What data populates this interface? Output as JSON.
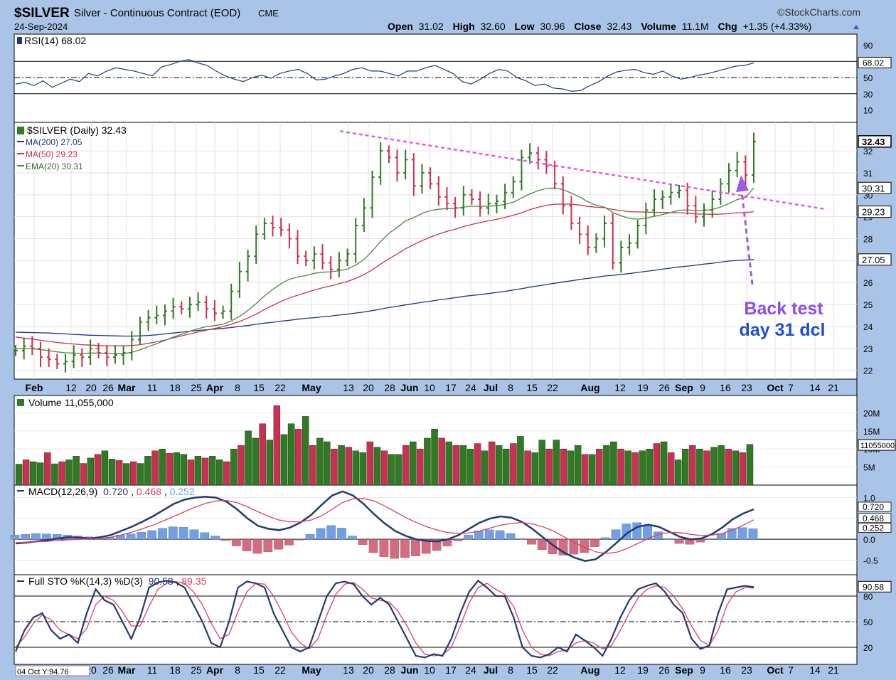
{
  "header": {
    "symbol": "$SILVER",
    "description": "Silver - Continuous Contract (EOD)",
    "exchange": "CME",
    "source": "©StockCharts.com",
    "date": "24-Sep-2024",
    "open_label": "Open",
    "open": "31.02",
    "high_label": "High",
    "high": "32.60",
    "low_label": "Low",
    "low": "30.96",
    "close_label": "Close",
    "close": "32.43",
    "volume_label": "Volume",
    "volume": "11.1M",
    "chg_label": "Chg",
    "chg": "+1.35 (+4.33%)"
  },
  "annotation": {
    "line1": "Back test",
    "line2": "day 31 dcl"
  },
  "cursor_readout": "04 Oct Y:94.76",
  "colors": {
    "background": "#a9c4e6",
    "panel": "#ffffff",
    "up": "#2f7a22",
    "down": "#c8314f",
    "ma200": "#1f2f8f",
    "ma50": "#c8314f",
    "ema20": "#4a8a3e",
    "trendline": "#e05ae8",
    "arrow": "#9b5ce8",
    "annotation_text": "#8a4cf0",
    "macd_line": "#1f3a7a",
    "macd_signal": "#e0405a",
    "histogram": "#6f9fe8",
    "volume_up": "#2f7a22",
    "volume_down": "#c8314f"
  },
  "chart_data": [
    {
      "type": "line",
      "title": "RSI(14) 68.02",
      "series": [
        {
          "name": "RSI(14)",
          "values": [
            42,
            44,
            40,
            46,
            38,
            43,
            48,
            45,
            55,
            52,
            58,
            62,
            60,
            58,
            55,
            52,
            63,
            66,
            70,
            72,
            68,
            65,
            58,
            52,
            48,
            45,
            50,
            53,
            49,
            55,
            58,
            60,
            55,
            47,
            48,
            52,
            55,
            60,
            62,
            58,
            58,
            55,
            52,
            58,
            58,
            62,
            65,
            60,
            55,
            45,
            42,
            48,
            55,
            60,
            58,
            50,
            46,
            40,
            42,
            37,
            36,
            33,
            34,
            40,
            45,
            52,
            57,
            59,
            60,
            56,
            54,
            58,
            52,
            48,
            50,
            53,
            55,
            58,
            61,
            64,
            65,
            68
          ]
        }
      ],
      "ylim": [
        0,
        100
      ],
      "ticks": [
        10,
        30,
        50,
        70,
        90
      ],
      "last_value_label": "68.02"
    },
    {
      "type": "bar",
      "title": "$SILVER (Daily) 32.43",
      "x_labels": [
        "Feb",
        "12",
        "20",
        "26",
        "Mar",
        "11",
        "18",
        "25",
        "Apr",
        "8",
        "15",
        "22",
        "May",
        "13",
        "20",
        "28",
        "Jun",
        "10",
        "17",
        "24",
        "Jul",
        "8",
        "15",
        "22",
        "Aug",
        "12",
        "19",
        "26",
        "Sep",
        "9",
        "16",
        "23",
        "Oct",
        "7",
        "14",
        "21"
      ],
      "ylim": [
        21.6,
        33.3
      ],
      "y_ticks": [
        22,
        23,
        24,
        25,
        26,
        27,
        28,
        29,
        30,
        31,
        32
      ],
      "price_labels": [
        "32.43",
        "30.31",
        "29.23",
        "27.05"
      ],
      "close": [
        22.9,
        23.1,
        23.0,
        22.6,
        22.5,
        22.3,
        22.4,
        22.7,
        22.6,
        23.0,
        22.8,
        22.6,
        22.7,
        22.8,
        23.4,
        24.2,
        24.4,
        24.5,
        24.7,
        24.9,
        24.8,
        25.0,
        25.1,
        24.8,
        24.6,
        24.7,
        25.6,
        26.5,
        27.2,
        28.2,
        28.7,
        28.5,
        28.4,
        28.0,
        27.2,
        27.0,
        27.3,
        26.9,
        26.6,
        27.0,
        27.3,
        28.6,
        29.4,
        30.8,
        32.0,
        31.7,
        31.0,
        31.6,
        30.4,
        31.0,
        30.5,
        29.9,
        29.6,
        29.4,
        30.0,
        29.8,
        29.4,
        29.6,
        29.7,
        30.1,
        30.6,
        31.7,
        31.9,
        31.6,
        31.3,
        30.5,
        29.5,
        28.7,
        28.2,
        27.6,
        28.0,
        28.7,
        26.9,
        27.6,
        27.8,
        28.6,
        29.3,
        29.8,
        29.9,
        30.1,
        30.2,
        29.5,
        29.0,
        29.3,
        29.8,
        30.5,
        31.1,
        31.5,
        30.9,
        32.43
      ],
      "series": [
        {
          "name": "MA(200)",
          "label": "MA(200) 27.05",
          "values": [
            23.74,
            23.73,
            23.72,
            23.71,
            23.7,
            23.68,
            23.66,
            23.64,
            23.62,
            23.6,
            23.59,
            23.58,
            23.57,
            23.56,
            23.56,
            23.57,
            23.59,
            23.62,
            23.66,
            23.7,
            23.74,
            23.78,
            23.82,
            23.85,
            23.88,
            23.91,
            23.95,
            24.0,
            24.04,
            24.1,
            24.15,
            24.19,
            24.24,
            24.28,
            24.33,
            24.37,
            24.4,
            24.44,
            24.47,
            24.52,
            24.56,
            24.61,
            24.66,
            24.72,
            24.79,
            24.86,
            24.92,
            24.98,
            25.04,
            25.1,
            25.15,
            25.21,
            25.26,
            25.31,
            25.37,
            25.41,
            25.45,
            25.5,
            25.55,
            25.6,
            25.66,
            25.72,
            25.79,
            25.85,
            25.91,
            25.97,
            26.03,
            26.08,
            26.14,
            26.19,
            26.24,
            26.3,
            26.33,
            26.37,
            26.41,
            26.46,
            26.51,
            26.56,
            26.61,
            26.66,
            26.71,
            26.75,
            26.79,
            26.84,
            26.88,
            26.93,
            26.98,
            27.01,
            27.03,
            27.05
          ]
        },
        {
          "name": "MA(50)",
          "label": "MA(50) 29.23",
          "values": [
            23.52,
            23.47,
            23.42,
            23.37,
            23.32,
            23.27,
            23.23,
            23.2,
            23.17,
            23.15,
            23.13,
            23.11,
            23.12,
            23.12,
            23.13,
            23.17,
            23.23,
            23.3,
            23.38,
            23.48,
            23.57,
            23.66,
            23.75,
            23.83,
            23.91,
            23.99,
            24.1,
            24.23,
            24.38,
            24.56,
            24.77,
            24.96,
            25.14,
            25.3,
            25.42,
            25.54,
            25.66,
            25.76,
            25.85,
            25.95,
            26.05,
            26.19,
            26.36,
            26.58,
            26.84,
            27.08,
            27.3,
            27.54,
            27.73,
            27.91,
            28.07,
            28.21,
            28.33,
            28.43,
            28.55,
            28.65,
            28.73,
            28.81,
            28.88,
            28.97,
            29.06,
            29.18,
            29.32,
            29.43,
            29.52,
            29.57,
            29.58,
            29.57,
            29.53,
            29.47,
            29.43,
            29.41,
            29.33,
            29.28,
            29.23,
            29.22,
            29.21,
            29.2,
            29.19,
            29.19,
            29.18,
            29.16,
            29.13,
            29.12,
            29.11,
            29.12,
            29.14,
            29.18,
            29.19,
            29.23
          ]
        },
        {
          "name": "EMA(20)",
          "label": "EMA(20) 30.31",
          "values": [
            23.0,
            22.99,
            22.99,
            22.94,
            22.9,
            22.84,
            22.8,
            22.79,
            22.77,
            22.79,
            22.79,
            22.77,
            22.76,
            22.76,
            22.82,
            22.94,
            23.08,
            23.21,
            23.36,
            23.52,
            23.64,
            23.78,
            23.9,
            23.99,
            24.04,
            24.1,
            24.25,
            24.46,
            24.73,
            25.04,
            25.39,
            25.69,
            25.95,
            26.15,
            26.25,
            26.32,
            26.42,
            26.47,
            26.49,
            26.54,
            26.61,
            26.8,
            27.05,
            27.43,
            27.87,
            28.24,
            28.51,
            28.81,
            28.96,
            29.15,
            29.28,
            29.34,
            29.37,
            29.38,
            29.44,
            29.48,
            29.47,
            29.48,
            29.5,
            29.56,
            29.66,
            29.85,
            30.04,
            30.19,
            30.29,
            30.31,
            30.23,
            30.08,
            29.9,
            29.68,
            29.52,
            29.44,
            29.19,
            29.04,
            28.92,
            28.89,
            28.93,
            29.02,
            29.1,
            29.19,
            29.29,
            29.31,
            29.28,
            29.28,
            29.33,
            29.44,
            29.6,
            29.78,
            29.88,
            30.31
          ]
        }
      ]
    },
    {
      "type": "bar",
      "title": "Volume 11,055,000",
      "series": [
        {
          "name": "Volume",
          "values": [
            5.8,
            7,
            6.5,
            6.2,
            9,
            5.9,
            6.5,
            7,
            8,
            6,
            7.5,
            8.5,
            9.5,
            7.2,
            6.8,
            6,
            6.5,
            6,
            8,
            9.5,
            10,
            8.8,
            9,
            8.5,
            7,
            8,
            7.5,
            8,
            7,
            6.5,
            10,
            11,
            15,
            13,
            17,
            12.5,
            22,
            14,
            17,
            15.5,
            19,
            11,
            13,
            12,
            10,
            11,
            10.5,
            9.5,
            9,
            12,
            10.5,
            9.5,
            8.5,
            8.5,
            11,
            12,
            10,
            13,
            15.5,
            13,
            12,
            11,
            11,
            10,
            11.5,
            9.5,
            12,
            11,
            10,
            11.5,
            13.5,
            9.5,
            9,
            12.5,
            10,
            12.5,
            10,
            9.5,
            11,
            8.5,
            8.5,
            10,
            11,
            12,
            10,
            9.5,
            9,
            9.5,
            10,
            11.5,
            12,
            9,
            7,
            10,
            11,
            10,
            9.5,
            10.5,
            11,
            10,
            9.5,
            9,
            11.3
          ]
        }
      ],
      "ticks": [
        "5M",
        "10M",
        "15M",
        "20M"
      ],
      "last_value_label": "11055000"
    },
    {
      "type": "line",
      "title": "MACD(12,26,9)",
      "series": [
        {
          "name": "MACD",
          "label": "0.720",
          "values": [
            -0.1,
            -0.08,
            -0.05,
            -0.02,
            0.02,
            0.05,
            0.04,
            0.02,
            0.05,
            0.1,
            0.2,
            0.3,
            0.42,
            0.55,
            0.7,
            0.85,
            0.95,
            1.0,
            1.02,
            1.0,
            0.9,
            0.72,
            0.5,
            0.32,
            0.25,
            0.22,
            0.28,
            0.4,
            0.58,
            0.82,
            1.05,
            1.15,
            1.05,
            0.85,
            0.6,
            0.38,
            0.2,
            0.08,
            0.0,
            -0.04,
            -0.05,
            0.0,
            0.1,
            0.25,
            0.4,
            0.5,
            0.55,
            0.52,
            0.42,
            0.25,
            0.05,
            -0.15,
            -0.32,
            -0.44,
            -0.52,
            -0.48,
            -0.3,
            -0.08,
            0.15,
            0.3,
            0.35,
            0.3,
            0.18,
            0.06,
            0.0,
            0.02,
            0.12,
            0.28,
            0.48,
            0.62,
            0.72
          ]
        },
        {
          "name": "Signal",
          "label": "0.468",
          "values": [
            -0.08,
            -0.07,
            -0.06,
            -0.05,
            -0.03,
            -0.01,
            0.0,
            0.01,
            0.02,
            0.05,
            0.1,
            0.17,
            0.25,
            0.34,
            0.44,
            0.55,
            0.66,
            0.77,
            0.86,
            0.92,
            0.93,
            0.88,
            0.78,
            0.66,
            0.55,
            0.46,
            0.42,
            0.42,
            0.46,
            0.56,
            0.72,
            0.88,
            0.97,
            0.98,
            0.92,
            0.8,
            0.66,
            0.52,
            0.4,
            0.3,
            0.22,
            0.16,
            0.14,
            0.15,
            0.2,
            0.27,
            0.34,
            0.38,
            0.4,
            0.37,
            0.3,
            0.2,
            0.06,
            -0.08,
            -0.2,
            -0.3,
            -0.34,
            -0.31,
            -0.22,
            -0.1,
            0.02,
            0.12,
            0.16,
            0.16,
            0.12,
            0.09,
            0.1,
            0.14,
            0.22,
            0.34,
            0.468
          ]
        },
        {
          "name": "Histogram",
          "label": "0.252",
          "values": [
            0.1,
            0.12,
            0.14,
            0.13,
            0.12,
            0.1,
            0.08,
            0.06,
            0.03,
            0.05,
            0.1,
            0.13,
            0.17,
            0.21,
            0.26,
            0.3,
            0.29,
            0.23,
            0.16,
            0.08,
            -0.03,
            -0.16,
            -0.28,
            -0.34,
            -0.3,
            -0.24,
            -0.14,
            -0.02,
            0.12,
            0.26,
            0.33,
            0.27,
            0.08,
            -0.13,
            -0.32,
            -0.42,
            -0.46,
            -0.44,
            -0.4,
            -0.34,
            -0.27,
            -0.16,
            -0.04,
            0.1,
            0.2,
            0.23,
            0.21,
            0.14,
            0.02,
            -0.12,
            -0.25,
            -0.35,
            -0.38,
            -0.36,
            -0.32,
            -0.18,
            0.04,
            0.23,
            0.37,
            0.4,
            0.33,
            0.18,
            0.02,
            -0.1,
            -0.12,
            -0.07,
            0.02,
            0.14,
            0.26,
            0.28,
            0.252
          ]
        }
      ],
      "ticks": [
        "-0.5",
        "0.0",
        "0.5",
        "1.0"
      ],
      "ylim": [
        -0.85,
        1.3
      ]
    },
    {
      "type": "line",
      "title": "Full STO %K(14,3) %D(3)",
      "series": [
        {
          "name": "%K(14,3)",
          "label": "90.58",
          "values": [
            15,
            40,
            55,
            60,
            40,
            30,
            35,
            25,
            60,
            88,
            75,
            70,
            50,
            30,
            55,
            90,
            96,
            98,
            96,
            90,
            70,
            50,
            25,
            20,
            50,
            90,
            97,
            95,
            90,
            60,
            40,
            20,
            15,
            20,
            50,
            80,
            95,
            97,
            94,
            80,
            70,
            78,
            70,
            50,
            30,
            10,
            8,
            12,
            10,
            30,
            60,
            85,
            98,
            90,
            80,
            80,
            55,
            20,
            10,
            8,
            12,
            20,
            15,
            35,
            28,
            20,
            10,
            30,
            55,
            75,
            88,
            92,
            95,
            85,
            70,
            60,
            30,
            18,
            22,
            60,
            88,
            90,
            92,
            90.58
          ]
        },
        {
          "name": "%D(3)",
          "label": "89.35",
          "values": [
            20,
            32,
            48,
            58,
            52,
            40,
            35,
            30,
            42,
            70,
            80,
            75,
            62,
            45,
            45,
            68,
            88,
            95,
            97,
            95,
            85,
            70,
            48,
            30,
            35,
            62,
            85,
            95,
            94,
            80,
            60,
            38,
            25,
            18,
            30,
            58,
            82,
            94,
            96,
            88,
            78,
            75,
            73,
            62,
            45,
            25,
            12,
            10,
            11,
            20,
            45,
            72,
            90,
            95,
            88,
            82,
            68,
            40,
            20,
            12,
            10,
            15,
            17,
            25,
            28,
            25,
            18,
            22,
            40,
            60,
            78,
            88,
            92,
            90,
            80,
            65,
            45,
            28,
            22,
            40,
            70,
            85,
            90,
            89.35
          ]
        }
      ],
      "ylim": [
        0,
        100
      ],
      "ticks": [
        20,
        50,
        80
      ],
      "cursor_value_label": "94.76"
    }
  ]
}
